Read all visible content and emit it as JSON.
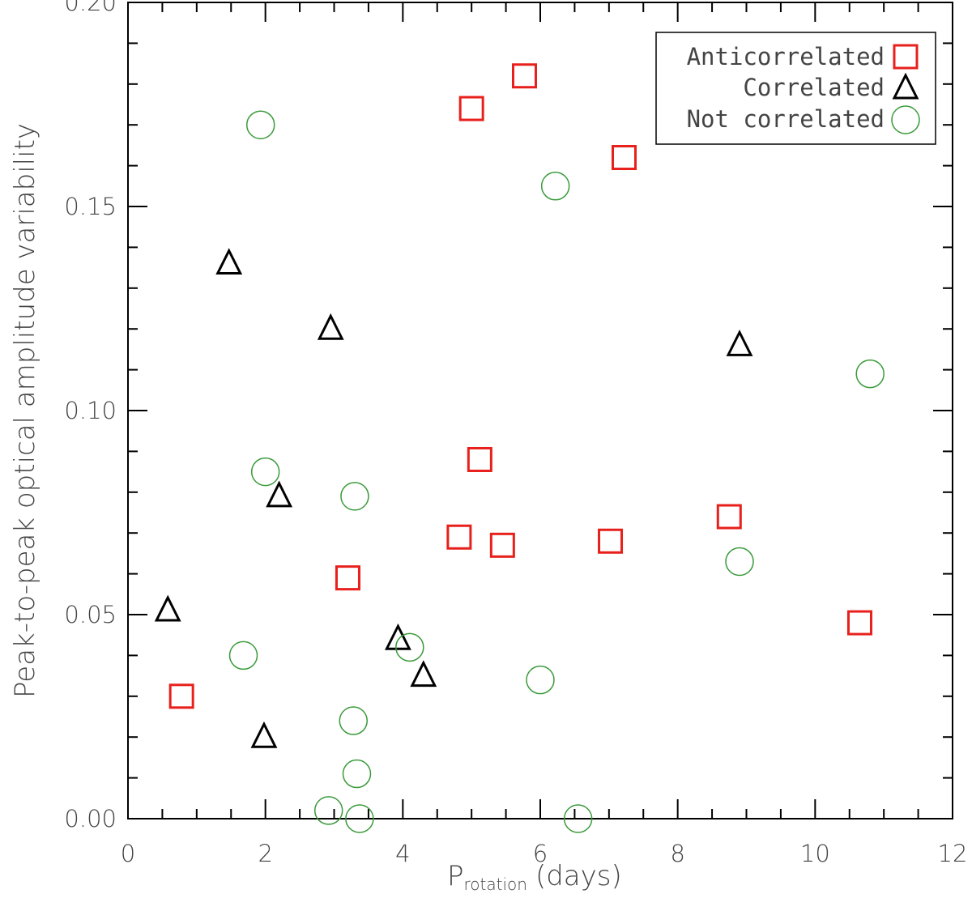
{
  "chart_data": {
    "type": "scatter",
    "title": "",
    "xlabel": {
      "main": "P",
      "subscript": "rotation",
      "suffix": "(days)"
    },
    "ylabel": "Peak-to-peak optical amplitude variability",
    "xlim": [
      0,
      12
    ],
    "ylim": [
      0,
      0.2
    ],
    "x_ticks": [
      "0",
      "2",
      "4",
      "6",
      "8",
      "10",
      "12"
    ],
    "y_ticks": [
      "0.00",
      "0.05",
      "0.10",
      "0.15",
      "0.20"
    ],
    "grid": false,
    "legend_position": "top-right",
    "series": [
      {
        "name": "Anticorrelated",
        "marker": "square",
        "color": "#e8201c",
        "points": [
          {
            "x": 0.78,
            "y": 0.03
          },
          {
            "x": 3.2,
            "y": 0.059
          },
          {
            "x": 4.82,
            "y": 0.069
          },
          {
            "x": 5.0,
            "y": 0.174
          },
          {
            "x": 5.12,
            "y": 0.088
          },
          {
            "x": 5.45,
            "y": 0.067
          },
          {
            "x": 5.77,
            "y": 0.182
          },
          {
            "x": 7.02,
            "y": 0.068
          },
          {
            "x": 7.22,
            "y": 0.162
          },
          {
            "x": 8.75,
            "y": 0.074
          },
          {
            "x": 10.65,
            "y": 0.048
          }
        ]
      },
      {
        "name": "Correlated",
        "marker": "triangle",
        "color": "#000000",
        "points": [
          {
            "x": 0.58,
            "y": 0.051
          },
          {
            "x": 1.47,
            "y": 0.136
          },
          {
            "x": 1.98,
            "y": 0.02
          },
          {
            "x": 2.2,
            "y": 0.079
          },
          {
            "x": 2.95,
            "y": 0.12
          },
          {
            "x": 3.93,
            "y": 0.044
          },
          {
            "x": 4.3,
            "y": 0.035
          },
          {
            "x": 8.9,
            "y": 0.116
          }
        ]
      },
      {
        "name": "Not correlated",
        "marker": "circle",
        "color": "#3a9a3a",
        "points": [
          {
            "x": 1.68,
            "y": 0.04
          },
          {
            "x": 1.93,
            "y": 0.17
          },
          {
            "x": 2.0,
            "y": 0.085
          },
          {
            "x": 2.92,
            "y": 0.002
          },
          {
            "x": 3.28,
            "y": 0.024
          },
          {
            "x": 3.3,
            "y": 0.079
          },
          {
            "x": 3.33,
            "y": 0.011
          },
          {
            "x": 3.37,
            "y": 0.0
          },
          {
            "x": 4.1,
            "y": 0.042
          },
          {
            "x": 6.0,
            "y": 0.034
          },
          {
            "x": 6.22,
            "y": 0.155
          },
          {
            "x": 6.55,
            "y": 0.0
          },
          {
            "x": 8.9,
            "y": 0.063
          },
          {
            "x": 10.8,
            "y": 0.109
          }
        ]
      }
    ]
  }
}
